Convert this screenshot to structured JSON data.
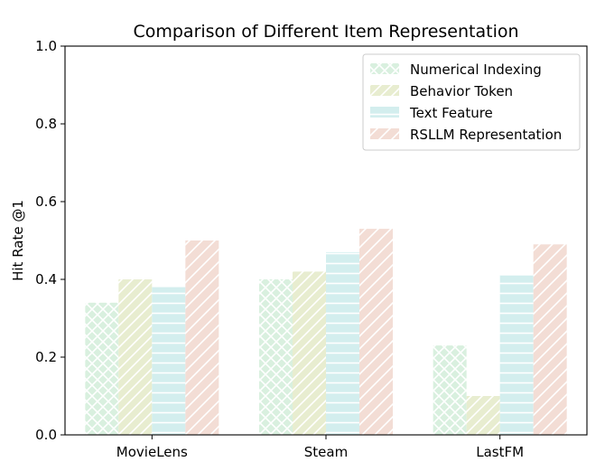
{
  "chart_data": {
    "type": "bar",
    "title": "Comparison of Different Item Representation",
    "xlabel": "",
    "ylabel": "Hit Rate @1",
    "ylim": [
      0,
      1.0
    ],
    "yticks": [
      "0.0",
      "0.2",
      "0.4",
      "0.6",
      "0.8",
      "1.0"
    ],
    "grid": false,
    "legend_position": "top-right",
    "categories": [
      "MovieLens",
      "Steam",
      "LastFM"
    ],
    "series": [
      {
        "name": "Numerical Indexing",
        "values": [
          0.34,
          0.4,
          0.23
        ],
        "color": "#d9f0df",
        "hatch": "crosshatch"
      },
      {
        "name": "Behavior Token",
        "values": [
          0.4,
          0.42,
          0.1
        ],
        "color": "#e8edd0",
        "hatch": "diagonal"
      },
      {
        "name": "Text Feature",
        "values": [
          0.38,
          0.47,
          0.41
        ],
        "color": "#d3eeee",
        "hatch": "horizontal"
      },
      {
        "name": "RSLLM Representation",
        "values": [
          0.5,
          0.53,
          0.49
        ],
        "color": "#f3ddd5",
        "hatch": "diagonal-wide"
      }
    ]
  }
}
